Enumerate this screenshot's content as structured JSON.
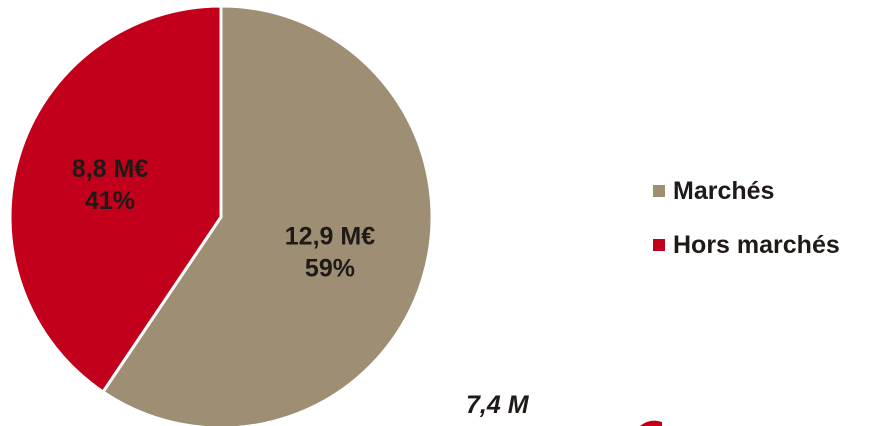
{
  "chart_data": {
    "type": "pie",
    "title": "",
    "slices": [
      {
        "name": "Marchés",
        "value": 12.9,
        "percent": 59,
        "value_label": "12,9 M€",
        "percent_label": "59%",
        "color": "#9e8f74"
      },
      {
        "name": "Hors marchés",
        "value": 8.8,
        "percent": 41,
        "value_label": "8,8 M€",
        "percent_label": "41%",
        "color": "#c2001b"
      }
    ],
    "legend_position": "right"
  },
  "partial_text": "7,4 M",
  "partial_shape_color": "#c2001b"
}
